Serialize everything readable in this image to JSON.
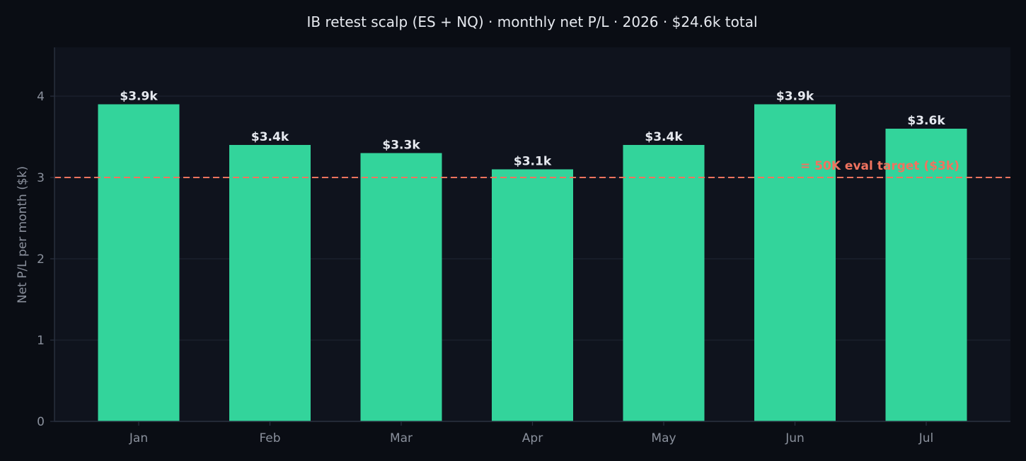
{
  "chart_data": {
    "type": "bar",
    "title": "IB retest scalp (ES + NQ) · monthly net P/L · 2026 · $24.6k total",
    "xlabel": "",
    "ylabel": "Net P/L per month ($k)",
    "categories": [
      "Jan",
      "Feb",
      "Mar",
      "Apr",
      "May",
      "Jun",
      "Jul"
    ],
    "values": [
      3.9,
      3.4,
      3.3,
      3.1,
      3.4,
      3.9,
      3.6
    ],
    "data_labels": [
      "$3.9k",
      "$3.4k",
      "$3.3k",
      "$3.1k",
      "$3.4k",
      "$3.9k",
      "$3.6k"
    ],
    "ylim": [
      0,
      4.6
    ],
    "yticks": [
      0,
      1,
      2,
      3,
      4
    ],
    "grid": true,
    "reference_line": {
      "value": 3,
      "label": "= 50K eval target ($3k)",
      "style": "dashed",
      "color": "#f0735f"
    },
    "colors": {
      "background": "#0a0d14",
      "plot_background": "#0f131d",
      "bar": "#33d49b",
      "grid": "#1c2230",
      "axis": "#2a3140"
    }
  }
}
